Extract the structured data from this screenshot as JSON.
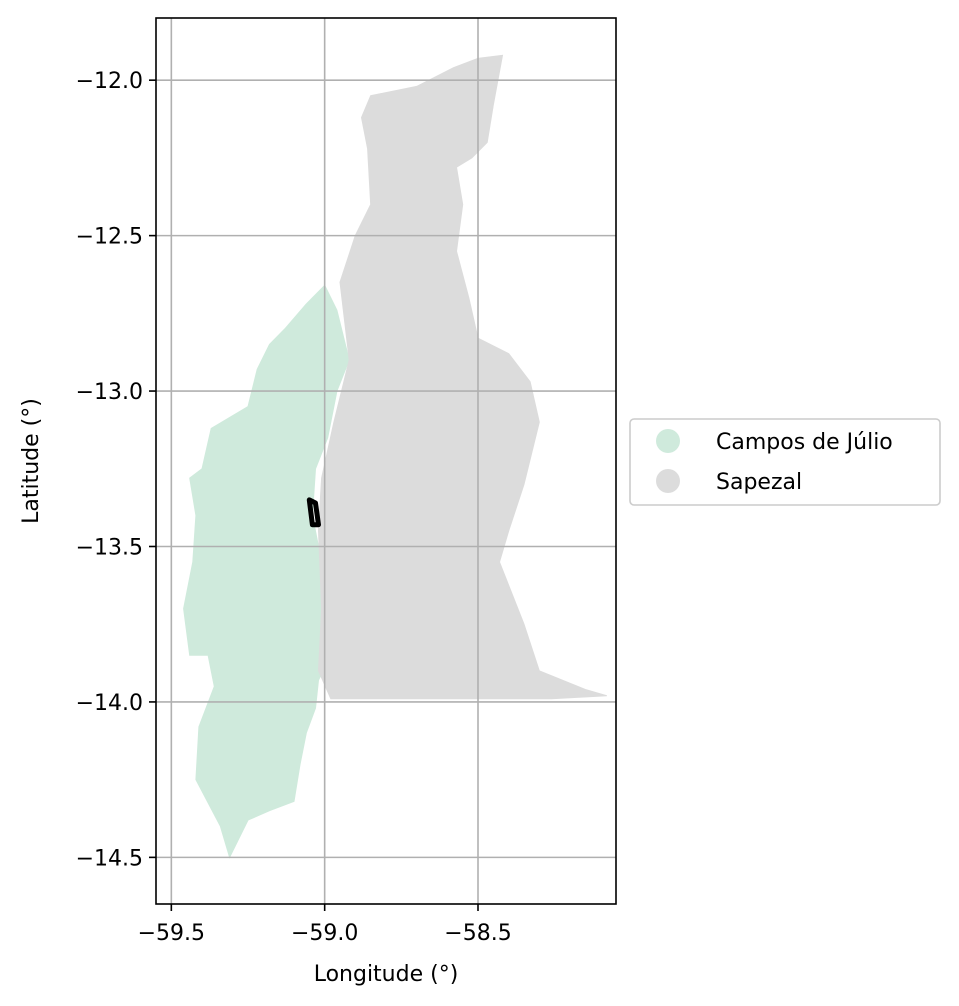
{
  "chart_data": {
    "type": "map",
    "xlabel": "Longitude (°)",
    "ylabel": "Latitude (°)",
    "xlim": [
      -59.55,
      -58.05
    ],
    "ylim": [
      -14.65,
      -11.8
    ],
    "x_ticks": [
      {
        "value": -59.5,
        "label": "−59.5"
      },
      {
        "value": -59.0,
        "label": "−59.0"
      },
      {
        "value": -58.5,
        "label": "−58.5"
      }
    ],
    "y_ticks": [
      {
        "value": -12.0,
        "label": "−12.0"
      },
      {
        "value": -12.5,
        "label": "−12.5"
      },
      {
        "value": -13.0,
        "label": "−13.0"
      },
      {
        "value": -13.5,
        "label": "−13.5"
      },
      {
        "value": -14.0,
        "label": "−14.0"
      },
      {
        "value": -14.5,
        "label": "−14.5"
      }
    ],
    "grid": true,
    "legend_position": "right",
    "regions": [
      {
        "name": "Campos de Júlio",
        "color": "#cfeadc",
        "polygon": [
          [
            -59.06,
            -12.72
          ],
          [
            -59.0,
            -12.66
          ],
          [
            -58.96,
            -12.74
          ],
          [
            -58.92,
            -12.9
          ],
          [
            -58.96,
            -13.0
          ],
          [
            -58.99,
            -13.15
          ],
          [
            -59.03,
            -13.25
          ],
          [
            -59.04,
            -13.4
          ],
          [
            -59.02,
            -13.5
          ],
          [
            -59.01,
            -13.62
          ],
          [
            -58.99,
            -13.78
          ],
          [
            -58.98,
            -13.85
          ],
          [
            -59.02,
            -13.93
          ],
          [
            -59.03,
            -14.02
          ],
          [
            -59.06,
            -14.1
          ],
          [
            -59.08,
            -14.2
          ],
          [
            -59.1,
            -14.32
          ],
          [
            -59.18,
            -14.35
          ],
          [
            -59.25,
            -14.38
          ],
          [
            -59.31,
            -14.5
          ],
          [
            -59.34,
            -14.4
          ],
          [
            -59.42,
            -14.25
          ],
          [
            -59.41,
            -14.08
          ],
          [
            -59.36,
            -13.95
          ],
          [
            -59.38,
            -13.85
          ],
          [
            -59.44,
            -13.85
          ],
          [
            -59.46,
            -13.7
          ],
          [
            -59.43,
            -13.55
          ],
          [
            -59.42,
            -13.4
          ],
          [
            -59.44,
            -13.28
          ],
          [
            -59.4,
            -13.25
          ],
          [
            -59.37,
            -13.12
          ],
          [
            -59.25,
            -13.05
          ],
          [
            -59.22,
            -12.93
          ],
          [
            -59.18,
            -12.85
          ],
          [
            -59.13,
            -12.8
          ]
        ]
      },
      {
        "name": "Sapezal",
        "color": "#dcdcdc",
        "polygon": [
          [
            -58.42,
            -11.92
          ],
          [
            -58.45,
            -12.08
          ],
          [
            -58.47,
            -12.2
          ],
          [
            -58.52,
            -12.25
          ],
          [
            -58.57,
            -12.28
          ],
          [
            -58.55,
            -12.4
          ],
          [
            -58.57,
            -12.55
          ],
          [
            -58.53,
            -12.7
          ],
          [
            -58.5,
            -12.83
          ],
          [
            -58.4,
            -12.88
          ],
          [
            -58.33,
            -12.97
          ],
          [
            -58.3,
            -13.1
          ],
          [
            -58.35,
            -13.3
          ],
          [
            -58.4,
            -13.45
          ],
          [
            -58.43,
            -13.55
          ],
          [
            -58.35,
            -13.75
          ],
          [
            -58.3,
            -13.9
          ],
          [
            -58.15,
            -13.96
          ],
          [
            -58.08,
            -13.98
          ],
          [
            -58.26,
            -13.99
          ],
          [
            -58.98,
            -13.99
          ],
          [
            -59.02,
            -13.9
          ],
          [
            -59.01,
            -13.7
          ],
          [
            -59.02,
            -13.45
          ],
          [
            -59.01,
            -13.28
          ],
          [
            -58.97,
            -13.1
          ],
          [
            -58.92,
            -12.9
          ],
          [
            -58.95,
            -12.65
          ],
          [
            -58.9,
            -12.5
          ],
          [
            -58.85,
            -12.4
          ],
          [
            -58.86,
            -12.22
          ],
          [
            -58.88,
            -12.12
          ],
          [
            -58.85,
            -12.05
          ],
          [
            -58.7,
            -12.02
          ],
          [
            -58.58,
            -11.96
          ],
          [
            -58.5,
            -11.93
          ]
        ]
      }
    ],
    "highlight_box": [
      [
        -59.05,
        -13.35
      ],
      [
        -59.03,
        -13.36
      ],
      [
        -59.02,
        -13.43
      ],
      [
        -59.04,
        -13.43
      ],
      [
        -59.05,
        -13.35
      ]
    ]
  },
  "legend": {
    "items": [
      {
        "label": "Campos de Júlio",
        "color": "#cfeadc"
      },
      {
        "label": "Sapezal",
        "color": "#dcdcdc"
      }
    ]
  }
}
